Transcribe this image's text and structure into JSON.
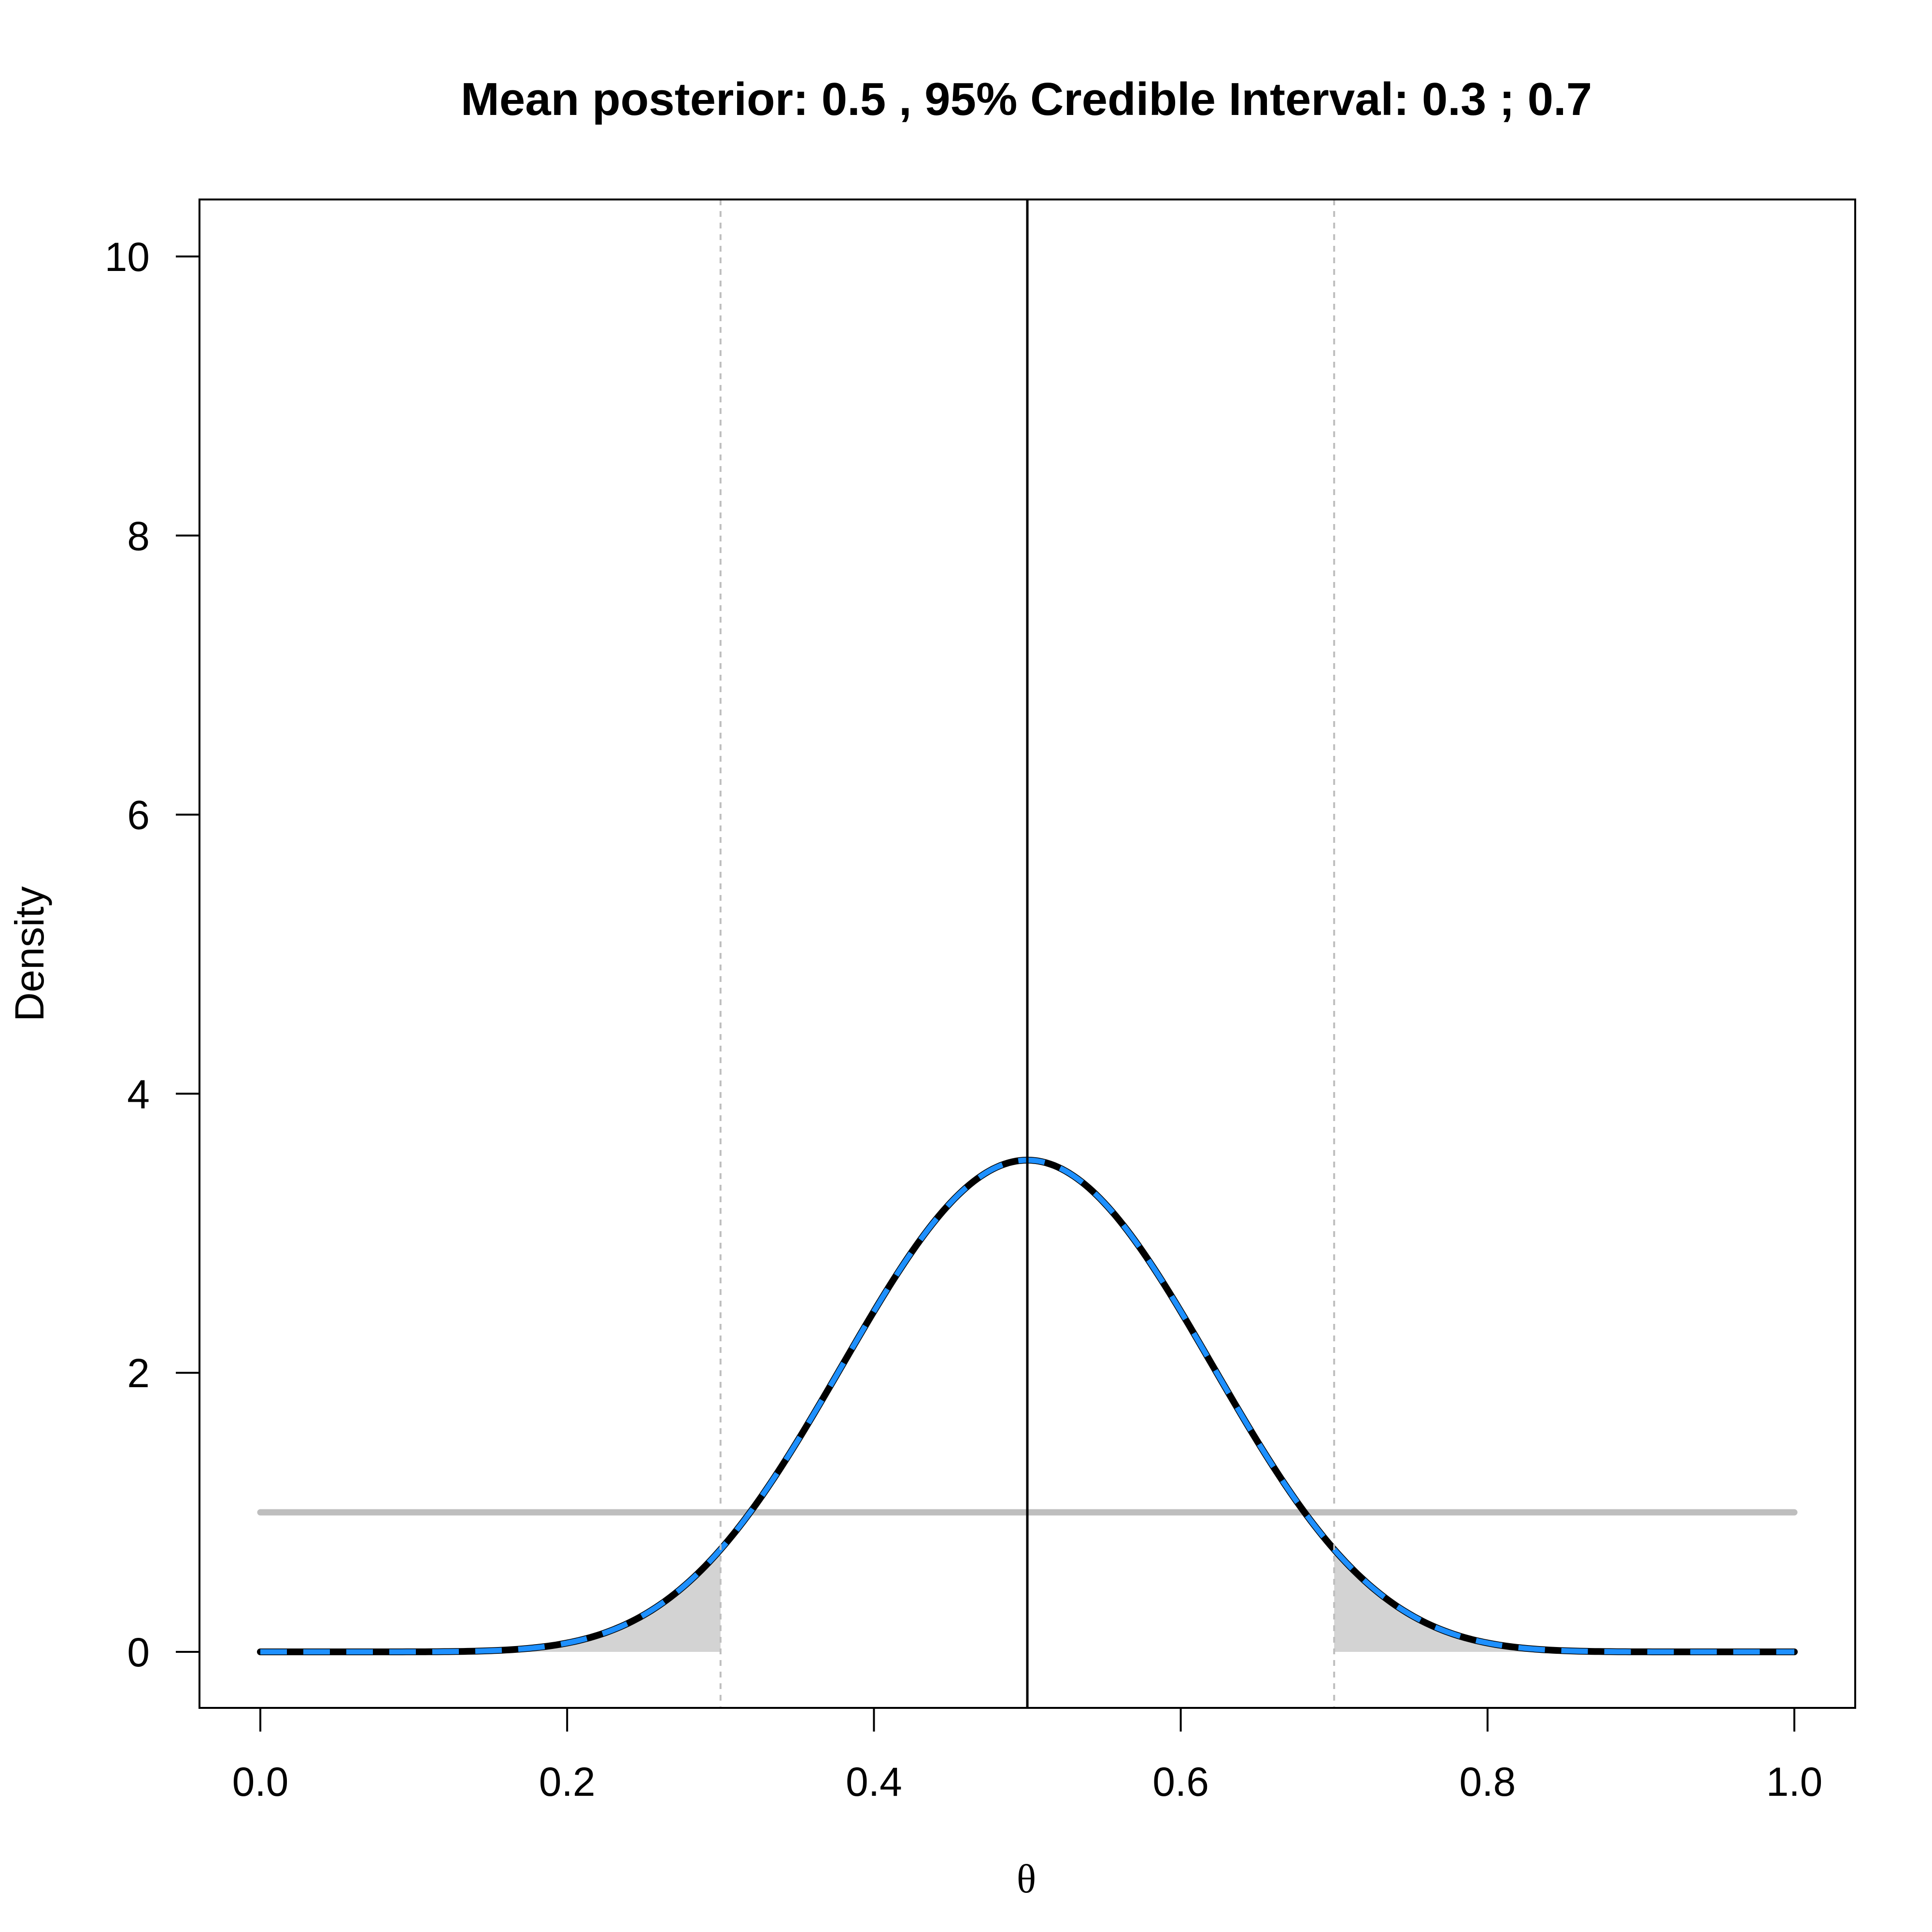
{
  "chart_data": {
    "type": "line",
    "title": "Mean posterior: 0.5 , 95% Credible Interval: 0.3 ; 0.7",
    "xlabel": "θ",
    "ylabel": "Density",
    "xlim": [
      0,
      1
    ],
    "ylim": [
      0,
      10
    ],
    "x_ticks": [
      "0.0",
      "0.2",
      "0.4",
      "0.6",
      "0.8",
      "1.0"
    ],
    "y_ticks": [
      "0",
      "2",
      "4",
      "6",
      "8",
      "10"
    ],
    "grid": false,
    "legend": "none",
    "posterior_mean": 0.5,
    "credible_interval": [
      0.3,
      0.7
    ],
    "posterior_beta_params": [
      10,
      10
    ],
    "prior_density": 1,
    "series": [
      {
        "style": "posterior-black-solid",
        "color": "#000000",
        "dist": "beta",
        "a": 10,
        "b": 10
      },
      {
        "style": "posterior-blue-dashed",
        "color": "#1E90FF",
        "dist": "beta",
        "a": 10,
        "b": 10
      },
      {
        "style": "prior-uniform",
        "color": "#BEBEBE",
        "dist": "uniform",
        "value": 1
      }
    ],
    "colors": {
      "tail_fill": "#D3D3D3",
      "interval_lines": "#BEBEBE",
      "mean_line": "#000000"
    }
  }
}
